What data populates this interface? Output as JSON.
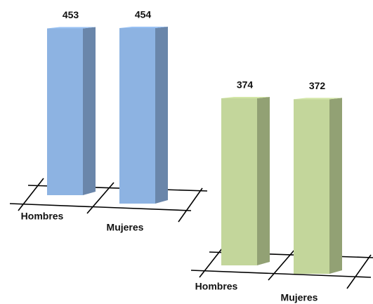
{
  "chart_data": [
    {
      "type": "bar3d",
      "categories": [
        "Hombres",
        "Mujeres"
      ],
      "values": [
        453,
        454
      ],
      "color": "#8db3e2"
    },
    {
      "type": "bar3d",
      "categories": [
        "Hombres",
        "Mujeres"
      ],
      "values": [
        374,
        372
      ],
      "color": "#c3d69b"
    }
  ]
}
